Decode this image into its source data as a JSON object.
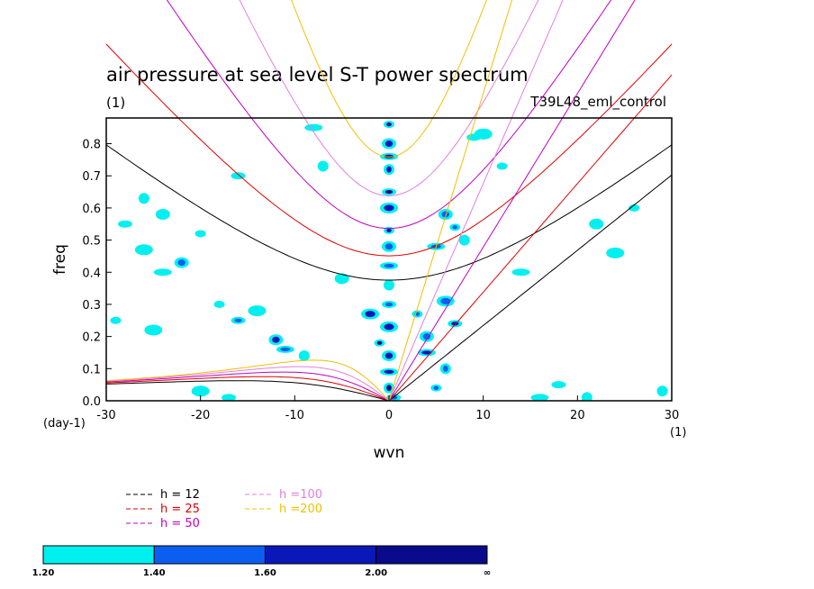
{
  "chart_data": {
    "type": "heatmap",
    "title": "air pressure at sea level S-T power spectrum",
    "subtitle_left": "(1)",
    "subtitle_right": "T39L48_eml_control",
    "xlabel": "wvn",
    "ylabel": "freq",
    "x_unit": "(1)",
    "y_unit": "(day-1)",
    "xlim": [
      -30,
      30
    ],
    "ylim": [
      0,
      0.88
    ],
    "x_ticks": [
      -30,
      -20,
      -10,
      0,
      10,
      20,
      30
    ],
    "y_ticks": [
      "0.0",
      "0.1",
      "0.2",
      "0.3",
      "0.4",
      "0.5",
      "0.6",
      "0.7",
      "0.8"
    ],
    "colorbar": {
      "levels": [
        "1.20",
        "1.40",
        "1.60",
        "2.00",
        "∞"
      ],
      "colors": [
        "#00f0f0",
        "#0a5ef0",
        "#0a18b8",
        "#0a0a8c"
      ]
    },
    "dispersion_curves": [
      {
        "label": "h = 12",
        "color": "#000000"
      },
      {
        "label": "h = 25",
        "color": "#e00000"
      },
      {
        "label": "h = 50",
        "color": "#c000c0"
      },
      {
        "label": "h =100",
        "color": "#e080e0"
      },
      {
        "label": "h =200",
        "color": "#f0c000"
      }
    ],
    "blobs": [
      {
        "x": 0,
        "y": 0.86,
        "level": 3
      },
      {
        "x": 0,
        "y": 0.8,
        "level": 2
      },
      {
        "x": 0,
        "y": 0.76,
        "level": 3
      },
      {
        "x": 0,
        "y": 0.72,
        "level": 2
      },
      {
        "x": 0,
        "y": 0.65,
        "level": 3
      },
      {
        "x": 0,
        "y": 0.6,
        "level": 2
      },
      {
        "x": 0,
        "y": 0.53,
        "level": 2
      },
      {
        "x": 0,
        "y": 0.48,
        "level": 1
      },
      {
        "x": 0,
        "y": 0.42,
        "level": 1
      },
      {
        "x": 0,
        "y": 0.36,
        "level": 0
      },
      {
        "x": 0,
        "y": 0.3,
        "level": 1
      },
      {
        "x": 0,
        "y": 0.23,
        "level": 2
      },
      {
        "x": -1,
        "y": 0.18,
        "level": 3
      },
      {
        "x": 0,
        "y": 0.14,
        "level": 2
      },
      {
        "x": 0,
        "y": 0.09,
        "level": 2
      },
      {
        "x": 0,
        "y": 0.04,
        "level": 3
      },
      {
        "x": 0.5,
        "y": 0.01,
        "level": 1
      },
      {
        "x": -2,
        "y": 0.27,
        "level": 2
      },
      {
        "x": 3,
        "y": 0.27,
        "level": 1
      },
      {
        "x": 4,
        "y": 0.2,
        "level": 1
      },
      {
        "x": 4,
        "y": 0.15,
        "level": 2
      },
      {
        "x": 6,
        "y": 0.1,
        "level": 1
      },
      {
        "x": 7,
        "y": 0.24,
        "level": 2
      },
      {
        "x": 6,
        "y": 0.31,
        "level": 1
      },
      {
        "x": 7,
        "y": 0.54,
        "level": 1
      },
      {
        "x": 6,
        "y": 0.58,
        "level": 1
      },
      {
        "x": 5,
        "y": 0.48,
        "level": 1
      },
      {
        "x": 8,
        "y": 0.5,
        "level": 0
      },
      {
        "x": 9,
        "y": 0.82,
        "level": 0
      },
      {
        "x": 10,
        "y": 0.83,
        "level": 0
      },
      {
        "x": 12,
        "y": 0.73,
        "level": 0
      },
      {
        "x": -12,
        "y": 0.19,
        "level": 2
      },
      {
        "x": -11,
        "y": 0.16,
        "level": 1
      },
      {
        "x": -9,
        "y": 0.14,
        "level": 0
      },
      {
        "x": -16,
        "y": 0.25,
        "level": 1
      },
      {
        "x": -14,
        "y": 0.28,
        "level": 0
      },
      {
        "x": -18,
        "y": 0.3,
        "level": 0
      },
      {
        "x": -22,
        "y": 0.43,
        "level": 1
      },
      {
        "x": -24,
        "y": 0.4,
        "level": 0
      },
      {
        "x": -26,
        "y": 0.63,
        "level": 0
      },
      {
        "x": -28,
        "y": 0.55,
        "level": 0
      },
      {
        "x": -26,
        "y": 0.47,
        "level": 0
      },
      {
        "x": -20,
        "y": 0.52,
        "level": 0
      },
      {
        "x": -24,
        "y": 0.58,
        "level": 0
      },
      {
        "x": -8,
        "y": 0.85,
        "level": 0
      },
      {
        "x": -7,
        "y": 0.73,
        "level": 0
      },
      {
        "x": -16,
        "y": 0.7,
        "level": 0
      },
      {
        "x": -25,
        "y": 0.22,
        "level": 0
      },
      {
        "x": -29,
        "y": 0.25,
        "level": 0
      },
      {
        "x": -5,
        "y": 0.38,
        "level": 0
      },
      {
        "x": 16,
        "y": 0.01,
        "level": 0
      },
      {
        "x": 21,
        "y": 0.01,
        "level": 0
      },
      {
        "x": 18,
        "y": 0.05,
        "level": 0
      },
      {
        "x": 24,
        "y": 0.46,
        "level": 0
      },
      {
        "x": 26,
        "y": 0.6,
        "level": 0
      },
      {
        "x": 22,
        "y": 0.55,
        "level": 0
      },
      {
        "x": 14,
        "y": 0.4,
        "level": 0
      },
      {
        "x": 29,
        "y": 0.03,
        "level": 0
      },
      {
        "x": -17,
        "y": 0.01,
        "level": 0
      },
      {
        "x": -20,
        "y": 0.03,
        "level": 0
      },
      {
        "x": 5,
        "y": 0.04,
        "level": 1
      }
    ]
  }
}
